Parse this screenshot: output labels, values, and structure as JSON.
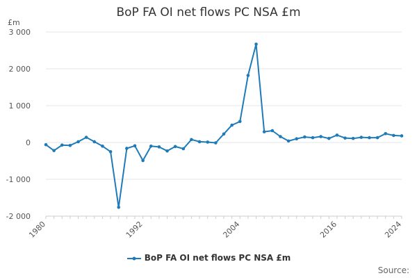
{
  "chart_data": {
    "type": "line",
    "title": "BoP FA OI net flows PC NSA £m",
    "y_unit_label": "£m",
    "x": [
      1980,
      1981,
      1982,
      1983,
      1984,
      1985,
      1986,
      1987,
      1988,
      1989,
      1990,
      1991,
      1992,
      1993,
      1994,
      1995,
      1996,
      1997,
      1998,
      1999,
      2000,
      2001,
      2002,
      2003,
      2004,
      2005,
      2006,
      2007,
      2008,
      2009,
      2010,
      2011,
      2012,
      2013,
      2014,
      2015,
      2016,
      2017,
      2018,
      2019,
      2020,
      2021,
      2022,
      2023,
      2024
    ],
    "series": [
      {
        "name": "BoP FA OI net flows PC NSA £m",
        "values": [
          -60,
          -220,
          -70,
          -80,
          20,
          140,
          20,
          -100,
          -250,
          -1760,
          -160,
          -90,
          -490,
          -100,
          -120,
          -230,
          -110,
          -170,
          80,
          20,
          10,
          -10,
          230,
          470,
          570,
          1820,
          2670,
          290,
          320,
          160,
          40,
          100,
          150,
          130,
          160,
          110,
          200,
          120,
          110,
          140,
          130,
          130,
          240,
          190,
          180
        ]
      }
    ],
    "x_ticks": [
      "1980",
      "1992",
      "2004",
      "2016",
      "2024"
    ],
    "y_ticks": [
      "3 000",
      "2 000",
      "1 000",
      "0",
      "-1 000",
      "-2 000"
    ],
    "y_tick_values": [
      3000,
      2000,
      1000,
      0,
      -1000,
      -2000
    ],
    "x_tick_values": [
      1980,
      1992,
      2004,
      2016,
      2024
    ],
    "xlim": [
      1980,
      2024
    ],
    "ylim": [
      -2000,
      3000
    ],
    "grid": "horizontal",
    "legend": "bottom-center",
    "line_color": "#1f7ab8"
  },
  "source_label": "Source:"
}
